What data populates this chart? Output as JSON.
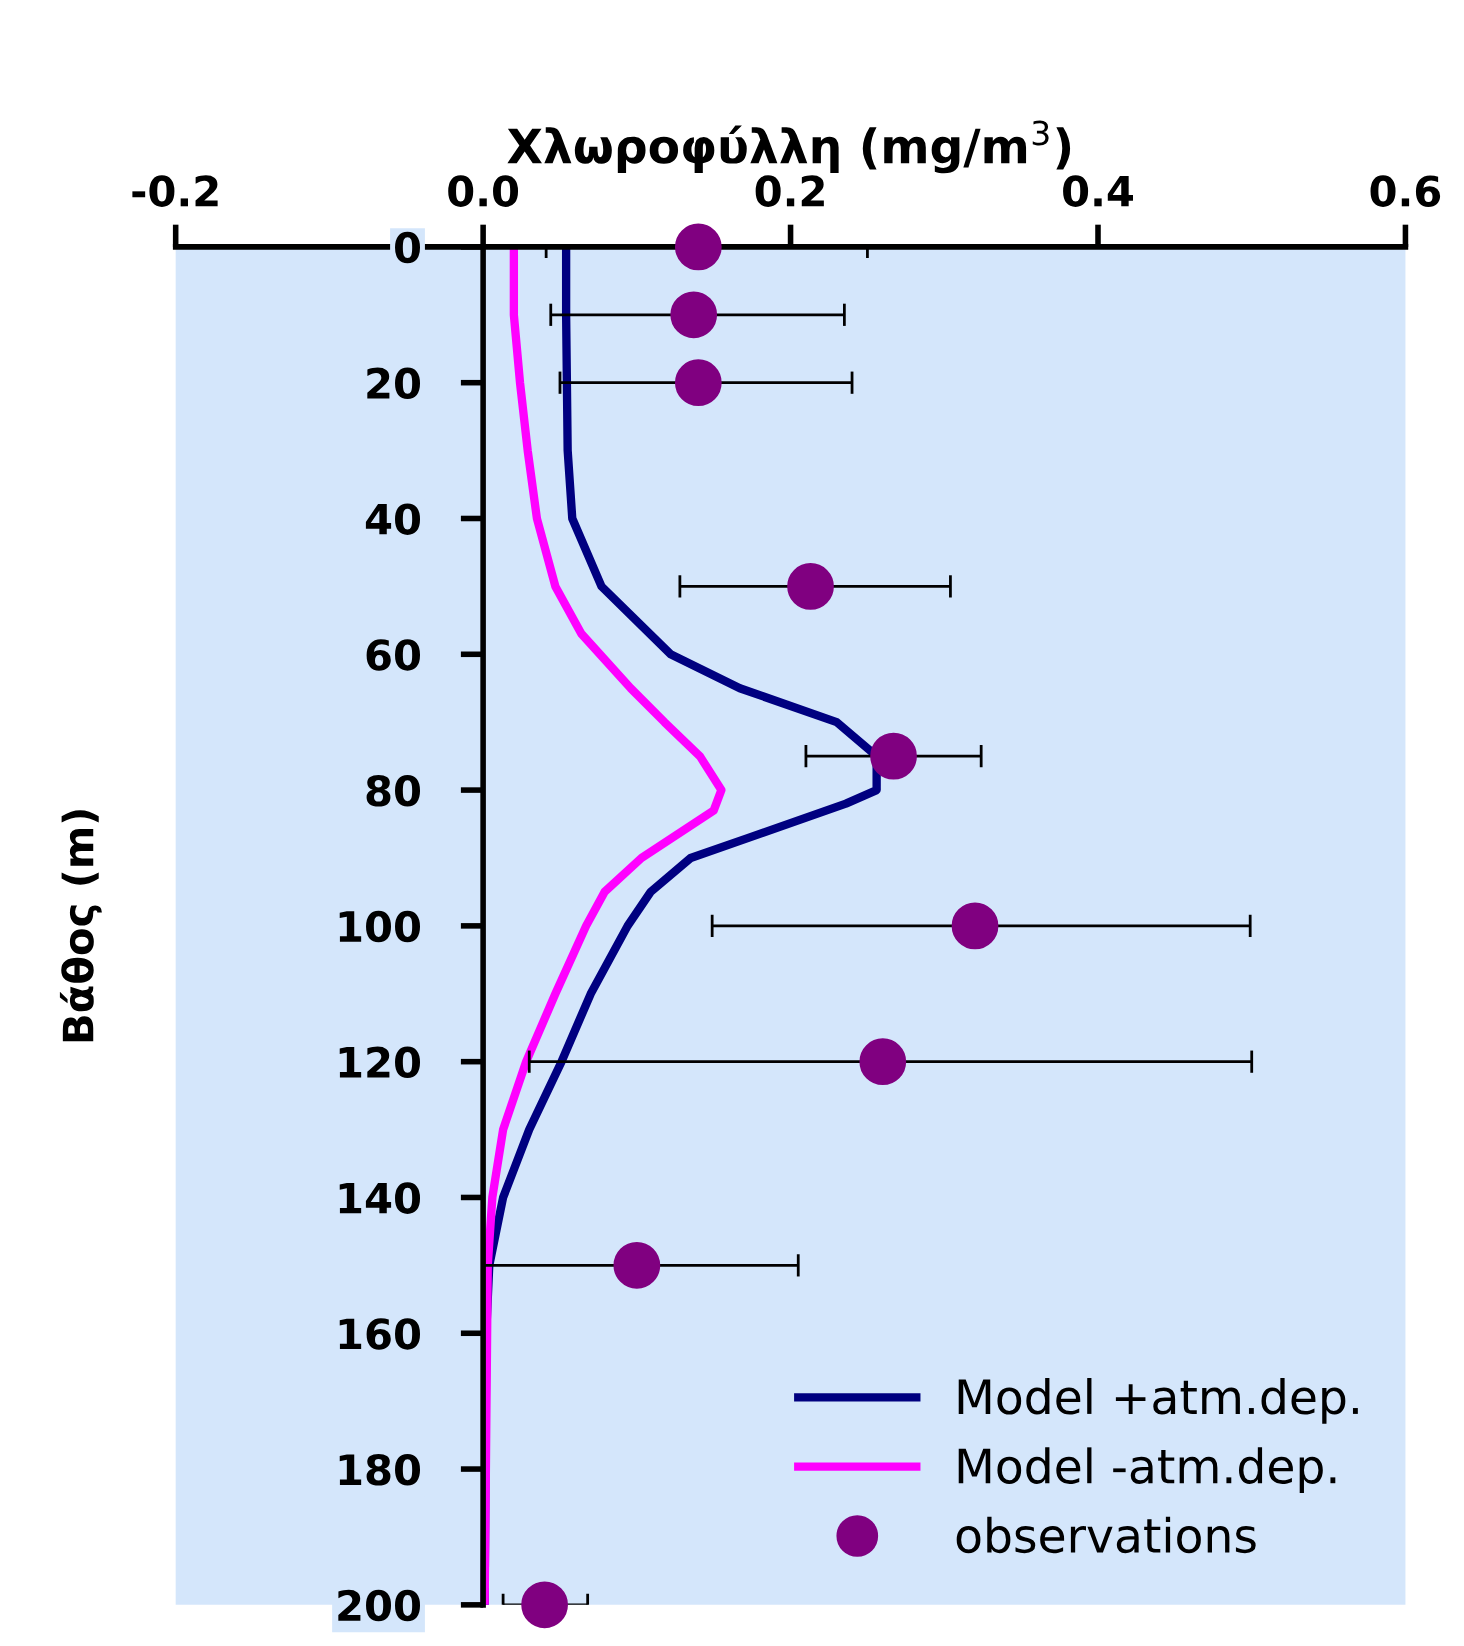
{
  "chart_data": {
    "type": "line",
    "xlabel": "Χλωροφύλλη (mg/m$^{3}$)",
    "ylabel": "Βάθος (m)",
    "xlim": [
      -0.2,
      0.6
    ],
    "xticks": [
      {
        "value": -0.2,
        "label": "-0.2"
      },
      {
        "value": 0,
        "label": "0.0"
      },
      {
        "value": 0.2,
        "label": "0.2"
      },
      {
        "value": 0.4,
        "label": "0.4"
      },
      {
        "value": 0.6,
        "label": "0.6"
      }
    ],
    "ylim": [
      200,
      0
    ],
    "yticks": [
      0,
      20,
      40,
      60,
      80,
      100,
      120,
      140,
      160,
      180,
      200
    ],
    "grid": false,
    "legend": "bottom right",
    "series": [
      {
        "name": "Model +atm.dep.",
        "color": "#000080",
        "marker": "none",
        "x": [
          0.054,
          0.054,
          0.055,
          0.058,
          0.077,
          0.122,
          0.167,
          0.23,
          0.256,
          0.256,
          0.236,
          0.173,
          0.135,
          0.109,
          0.094,
          0.07,
          0.051,
          0.03,
          0.013,
          0.004,
          0.002,
          0.001
        ],
        "values": [
          0,
          10,
          30,
          40,
          50,
          60,
          65,
          70,
          75,
          80,
          82,
          87,
          90,
          95,
          100,
          110,
          120,
          130,
          140,
          150,
          160,
          200
        ]
      },
      {
        "name": "Model -atm.dep.",
        "color": "#ff00ff",
        "marker": "none",
        "x": [
          0.02,
          0.02,
          0.024,
          0.029,
          0.035,
          0.047,
          0.064,
          0.096,
          0.118,
          0.141,
          0.155,
          0.15,
          0.103,
          0.079,
          0.067,
          0.047,
          0.028,
          0.013,
          0.006,
          0.003,
          0.001
        ],
        "values": [
          0,
          10,
          20,
          30,
          40,
          50,
          57,
          65,
          70,
          75,
          80,
          83,
          90,
          95,
          100,
          110,
          120,
          130,
          140,
          150,
          200
        ]
      },
      {
        "name": "observations",
        "color": "#800080",
        "type": "scatter",
        "marker": "circle",
        "x": [
          0.14,
          0.137,
          0.14,
          0.213,
          0.267,
          0.32,
          0.26,
          0.1,
          0.04
        ],
        "values": [
          0,
          10,
          20,
          50,
          75,
          100,
          120,
          150,
          200
        ],
        "xerrors": [
          [
            0.041,
            0.25
          ],
          [
            0.044,
            0.235
          ],
          [
            0.05,
            0.24
          ],
          [
            0.128,
            0.304
          ],
          [
            0.21,
            0.324
          ],
          [
            0.149,
            0.499
          ],
          [
            0.03,
            0.5
          ],
          [
            0.0,
            0.205
          ],
          [
            0.013,
            0.068
          ]
        ]
      }
    ]
  }
}
